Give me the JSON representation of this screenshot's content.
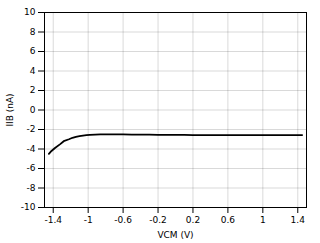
{
  "chart_data": {
    "type": "line",
    "xlabel": "VCM (V)",
    "ylabel": "IIB (nA)",
    "x": [
      -1.45,
      -1.42,
      -1.38,
      -1.32,
      -1.28,
      -1.22,
      -1.18,
      -1.14,
      -1.1,
      -1.06,
      -1.02,
      -0.98,
      -0.92,
      -0.86,
      -0.8,
      -0.7,
      -0.6,
      -0.5,
      -0.4,
      -0.3,
      -0.2,
      -0.1,
      0.0,
      0.1,
      0.2,
      0.3,
      0.4,
      0.5,
      0.6,
      0.7,
      0.8,
      0.9,
      1.0,
      1.1,
      1.2,
      1.3,
      1.4,
      1.45
    ],
    "values": [
      -4.5,
      -4.2,
      -3.9,
      -3.5,
      -3.2,
      -3.0,
      -2.85,
      -2.75,
      -2.68,
      -2.62,
      -2.58,
      -2.55,
      -2.52,
      -2.5,
      -2.5,
      -2.5,
      -2.5,
      -2.52,
      -2.52,
      -2.53,
      -2.55,
      -2.55,
      -2.55,
      -2.56,
      -2.57,
      -2.58,
      -2.58,
      -2.58,
      -2.58,
      -2.58,
      -2.58,
      -2.58,
      -2.57,
      -2.57,
      -2.57,
      -2.57,
      -2.57,
      -2.57
    ],
    "color": "#000000",
    "xlim": [
      -1.5,
      1.5
    ],
    "ylim": [
      -10,
      10
    ],
    "xticks": [
      -1.4,
      -1.0,
      -0.6,
      -0.2,
      0.2,
      0.6,
      1.0,
      1.4
    ],
    "yticks": [
      -10,
      -8,
      -6,
      -4,
      -2,
      0,
      2,
      4,
      6,
      8,
      10
    ],
    "grid": true
  }
}
